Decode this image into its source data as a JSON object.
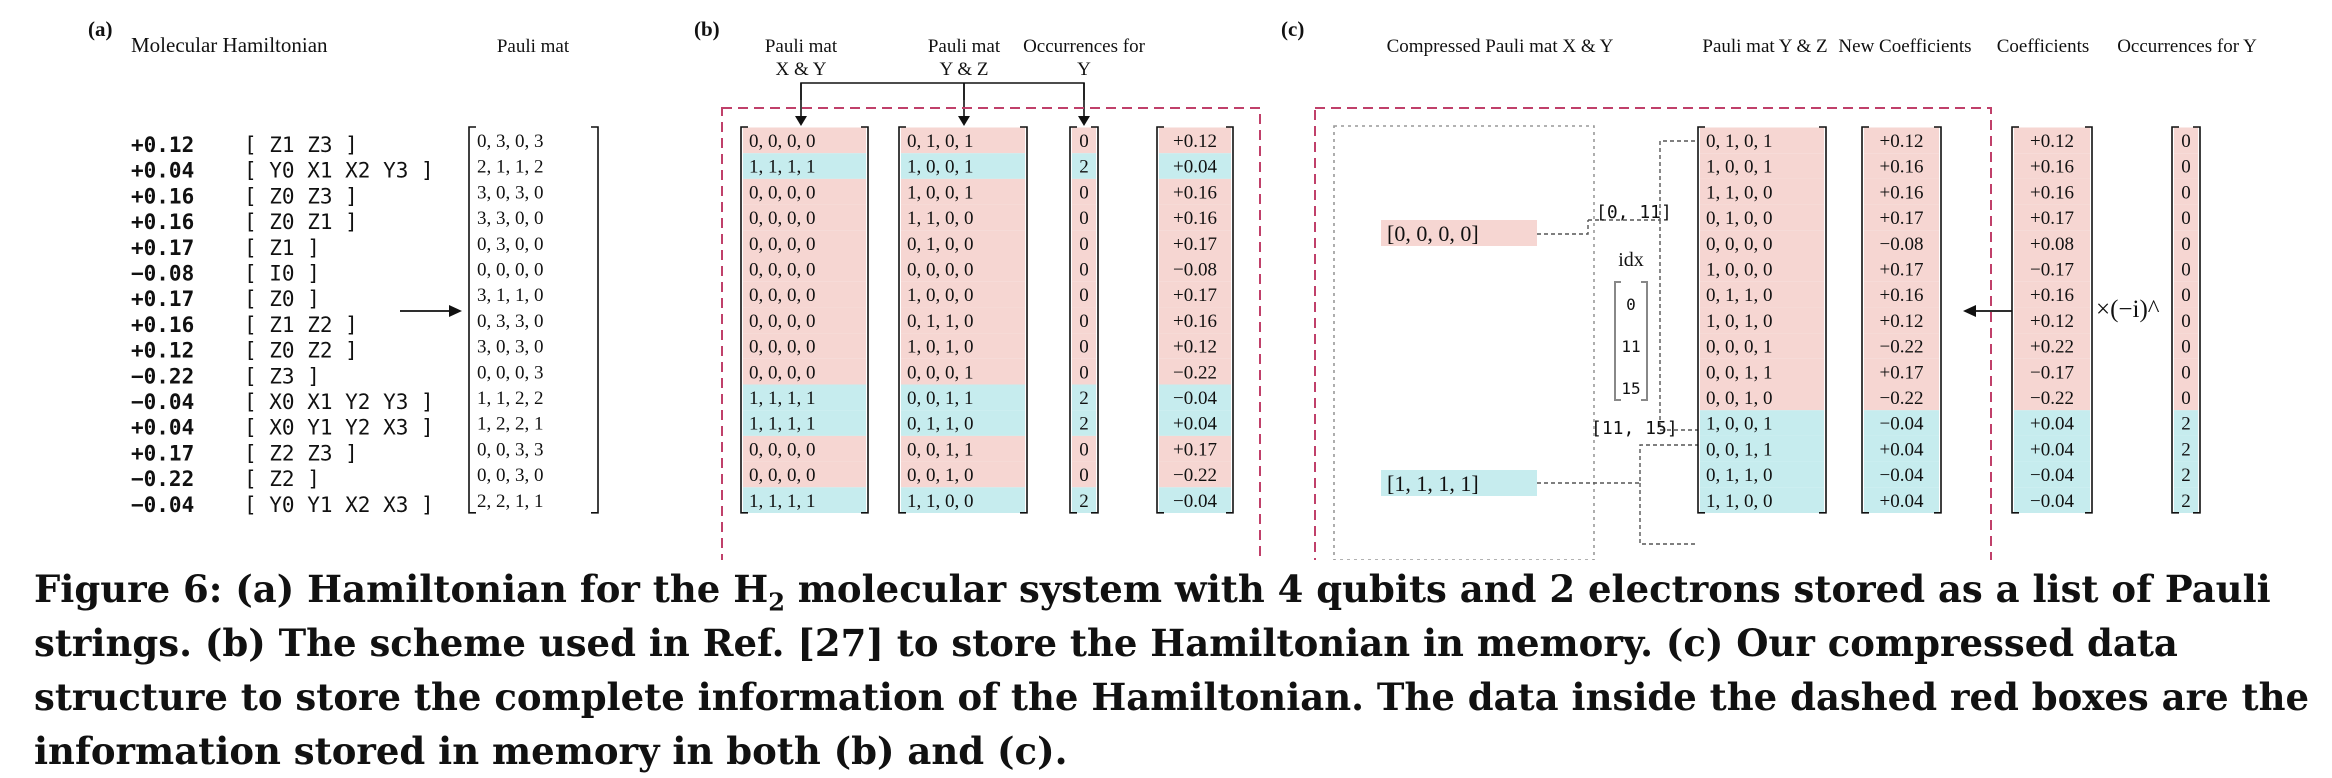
{
  "panels": {
    "a": "(a)",
    "b": "(b)",
    "c": "(c)"
  },
  "headers": {
    "a_title": "Molecular Hamiltonian",
    "a_pauli": "Pauli mat",
    "b_xy": [
      "Pauli mat",
      "X & Y"
    ],
    "b_yz": [
      "Pauli mat",
      "Y & Z"
    ],
    "b_occ": [
      "Occurrences for",
      "Y"
    ],
    "c_compressed": "Compressed Pauli mat X & Y",
    "c_yz": "Pauli mat Y & Z",
    "c_newcoef": "New Coefficients",
    "c_coef": "Coefficients",
    "c_occ": "Occurrences for Y"
  },
  "hamiltonian": [
    {
      "coef": "+0.12",
      "term": "[ Z1 Z3 ]"
    },
    {
      "coef": "+0.04",
      "term": "[ Y0 X1 X2 Y3 ]"
    },
    {
      "coef": "+0.16",
      "term": "[ Z0 Z3 ]"
    },
    {
      "coef": "+0.16",
      "term": "[ Z0 Z1 ]"
    },
    {
      "coef": "+0.17",
      "term": "[ Z1 ]"
    },
    {
      "coef": "−0.08",
      "term": "[ I0 ]"
    },
    {
      "coef": "+0.17",
      "term": "[ Z0 ]"
    },
    {
      "coef": "+0.16",
      "term": "[ Z1 Z2 ]"
    },
    {
      "coef": "+0.12",
      "term": "[ Z0 Z2 ]"
    },
    {
      "coef": "−0.22",
      "term": "[ Z3 ]"
    },
    {
      "coef": "−0.04",
      "term": "[ X0 X1 Y2 Y3 ]"
    },
    {
      "coef": "+0.04",
      "term": "[ X0 Y1 Y2 X3 ]"
    },
    {
      "coef": "+0.17",
      "term": "[ Z2 Z3 ]"
    },
    {
      "coef": "−0.22",
      "term": "[ Z2 ]"
    },
    {
      "coef": "−0.04",
      "term": "[ Y0 Y1 X2 X3 ]"
    }
  ],
  "a_pauli_rows": [
    "0,  3,  0,  3",
    "2,  1,  1,  2",
    "3,  0,  3,  0",
    "3,  3,  0,  0",
    "0,  3,  0,  0",
    "0,  0,  0,  0",
    "3,  1,  1,  0",
    "0,  3,  3,  0",
    "3,  0,  3,  0",
    "0,  0,  0,  3",
    "1,  1,  2,  2",
    "1,  2,  2,  1",
    "0,  0,  3,  3",
    "0,  0,  3,  0",
    "2,  2,  1,  1"
  ],
  "b_xy_rows": [
    "0,  0,  0,  0",
    "1,  1,  1,  1",
    "0,  0,  0,  0",
    "0,  0,  0,  0",
    "0,  0,  0,  0",
    "0,  0,  0,  0",
    "0,  0,  0,  0",
    "0,  0,  0,  0",
    "0,  0,  0,  0",
    "0,  0,  0,  0",
    "1,  1,  1,  1",
    "1,  1,  1,  1",
    "0,  0,  0,  0",
    "0,  0,  0,  0",
    "1,  1,  1,  1"
  ],
  "b_yz_rows": [
    "0,  1,  0,  1",
    "1,  0,  0,  1",
    "1,  0,  0,  1",
    "1,  1,  0,  0",
    "0,  1,  0,  0",
    "0,  0,  0,  0",
    "1,  0,  0,  0",
    "0,  1,  1,  0",
    "1,  0,  1,  0",
    "0,  0,  0,  1",
    "0,  0,  1,  1",
    "0,  1,  1,  0",
    "0,  0,  1,  1",
    "0,  0,  1,  0",
    "1,  1,  0,  0"
  ],
  "b_occ_rows": [
    "0",
    "2",
    "0",
    "0",
    "0",
    "0",
    "0",
    "0",
    "0",
    "0",
    "2",
    "2",
    "0",
    "0",
    "2"
  ],
  "b_coef_rows": [
    "+0.12",
    "+0.04",
    "+0.16",
    "+0.16",
    "+0.17",
    "−0.08",
    "+0.17",
    "+0.16",
    "+0.12",
    "−0.22",
    "−0.04",
    "+0.04",
    "+0.17",
    "−0.22",
    "−0.04"
  ],
  "b_highlight": [
    false,
    true,
    false,
    false,
    false,
    false,
    false,
    false,
    false,
    false,
    true,
    true,
    false,
    false,
    true
  ],
  "c_compressed": {
    "row0": "[0,  0,  0,  0]",
    "row1": "[1,  1,  1,  1]",
    "label0": "[0, 11]",
    "label1": "[11, 15]",
    "idx_label": "idx",
    "idx_values": [
      "0",
      "11",
      "15"
    ]
  },
  "c_yz_rows": [
    "0,  1,  0,  1",
    "1,  0,  0,  1",
    "1,  1,  0,  0",
    "0,  1,  0,  0",
    "0,  0,  0,  0",
    "1,  0,  0,  0",
    "0,  1,  1,  0",
    "1,  0,  1,  0",
    "0,  0,  0,  1",
    "0,  0,  1,  1",
    "0,  0,  1,  0",
    "1,  0,  0,  1",
    "0,  0,  1,  1",
    "0,  1,  1,  0",
    "1,  1,  0,  0"
  ],
  "c_newcoef_rows": [
    "+0.12",
    "+0.16",
    "+0.16",
    "+0.17",
    "−0.08",
    "+0.17",
    "+0.16",
    "+0.12",
    "−0.22",
    "+0.17",
    "−0.22",
    "−0.04",
    "+0.04",
    "−0.04",
    "+0.04"
  ],
  "c_coef_rows": [
    "+0.12",
    "+0.16",
    "+0.16",
    "+0.17",
    "+0.08",
    "−0.17",
    "+0.16",
    "+0.12",
    "+0.22",
    "−0.17",
    "−0.22",
    "+0.04",
    "+0.04",
    "−0.04",
    "−0.04"
  ],
  "c_occ_rows": [
    "0",
    "0",
    "0",
    "0",
    "0",
    "0",
    "0",
    "0",
    "0",
    "0",
    "0",
    "2",
    "2",
    "2",
    "2"
  ],
  "c_highlight": [
    false,
    false,
    false,
    false,
    false,
    false,
    false,
    false,
    false,
    false,
    false,
    true,
    true,
    true,
    true
  ],
  "c_factor": "×(−i)^",
  "caption": {
    "part1": "Figure 6: (a) Hamiltonian for the H",
    "sub": "2",
    "part2": " molecular system with 4 qubits and 2 electrons stored as a list of Pauli strings. (b) The scheme used in Ref. [27] to store the Hamiltonian in memory. (c) Our compressed data structure to store the complete information of the Hamiltonian. The data inside the dashed red boxes are the information stored in memory in both (b) and (c)."
  },
  "colors": {
    "pink": "#f6d6d2",
    "cyan": "#c6ecee",
    "green": "#2a8a1e",
    "dash": "#c0406a",
    "gray": "#888888"
  }
}
